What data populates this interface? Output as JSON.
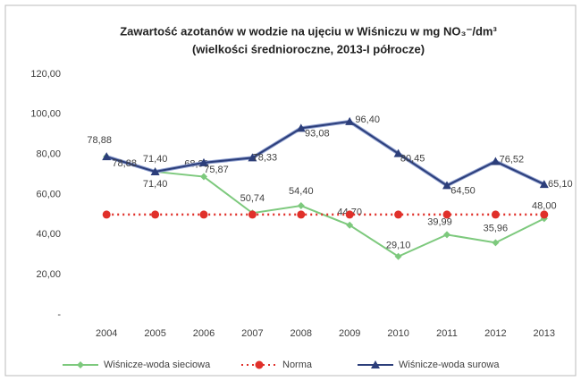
{
  "chart_data": {
    "type": "line",
    "title": "Zawartość azotanów w wodzie na ujęciu w Wiśniczu w mg NO₃⁻/dm³",
    "subtitle": "(wielkości średnioroczne, 2013-I półrocze)",
    "categories": [
      "2004",
      "2005",
      "2006",
      "2007",
      "2008",
      "2009",
      "2010",
      "2011",
      "2012",
      "2013"
    ],
    "series": [
      {
        "name": "Wiśnicze-woda sieciowa",
        "color": "#7dc97d",
        "marker": "diamond",
        "values": [
          78.88,
          71.4,
          68.9,
          50.74,
          54.4,
          44.7,
          29.1,
          39.99,
          35.96,
          48.0
        ],
        "value_labels": [
          "78,88",
          "71,40",
          "68,90",
          "50,74",
          "54,40",
          "44,70",
          "29,10",
          "39,99",
          "35,96",
          "48,00"
        ]
      },
      {
        "name": "Norma",
        "color": "#e0302a",
        "marker": "circle",
        "dash": true,
        "values": [
          50,
          50,
          50,
          50,
          50,
          50,
          50,
          50,
          50,
          50
        ]
      },
      {
        "name": "Wiśnicze-woda surowa",
        "color": "#2c3e7a",
        "marker": "triangle",
        "values": [
          78.88,
          71.4,
          75.87,
          78.33,
          93.08,
          96.4,
          80.45,
          64.5,
          76.52,
          65.1
        ],
        "value_labels": [
          "78,88",
          "71,40",
          "75,87",
          "78,33",
          "93,08",
          "96,40",
          "80,45",
          "64,50",
          "76,52",
          "65,10"
        ]
      }
    ],
    "ylim": [
      0,
      120
    ],
    "yticks": [
      {
        "value": 0,
        "label": "-"
      },
      {
        "value": 20,
        "label": "20,00"
      },
      {
        "value": 40,
        "label": "40,00"
      },
      {
        "value": 60,
        "label": "60,00"
      },
      {
        "value": 80,
        "label": "80,00"
      },
      {
        "value": 100,
        "label": "100,00"
      },
      {
        "value": 120,
        "label": "120,00"
      }
    ],
    "grid": false,
    "legend": "bottom"
  }
}
